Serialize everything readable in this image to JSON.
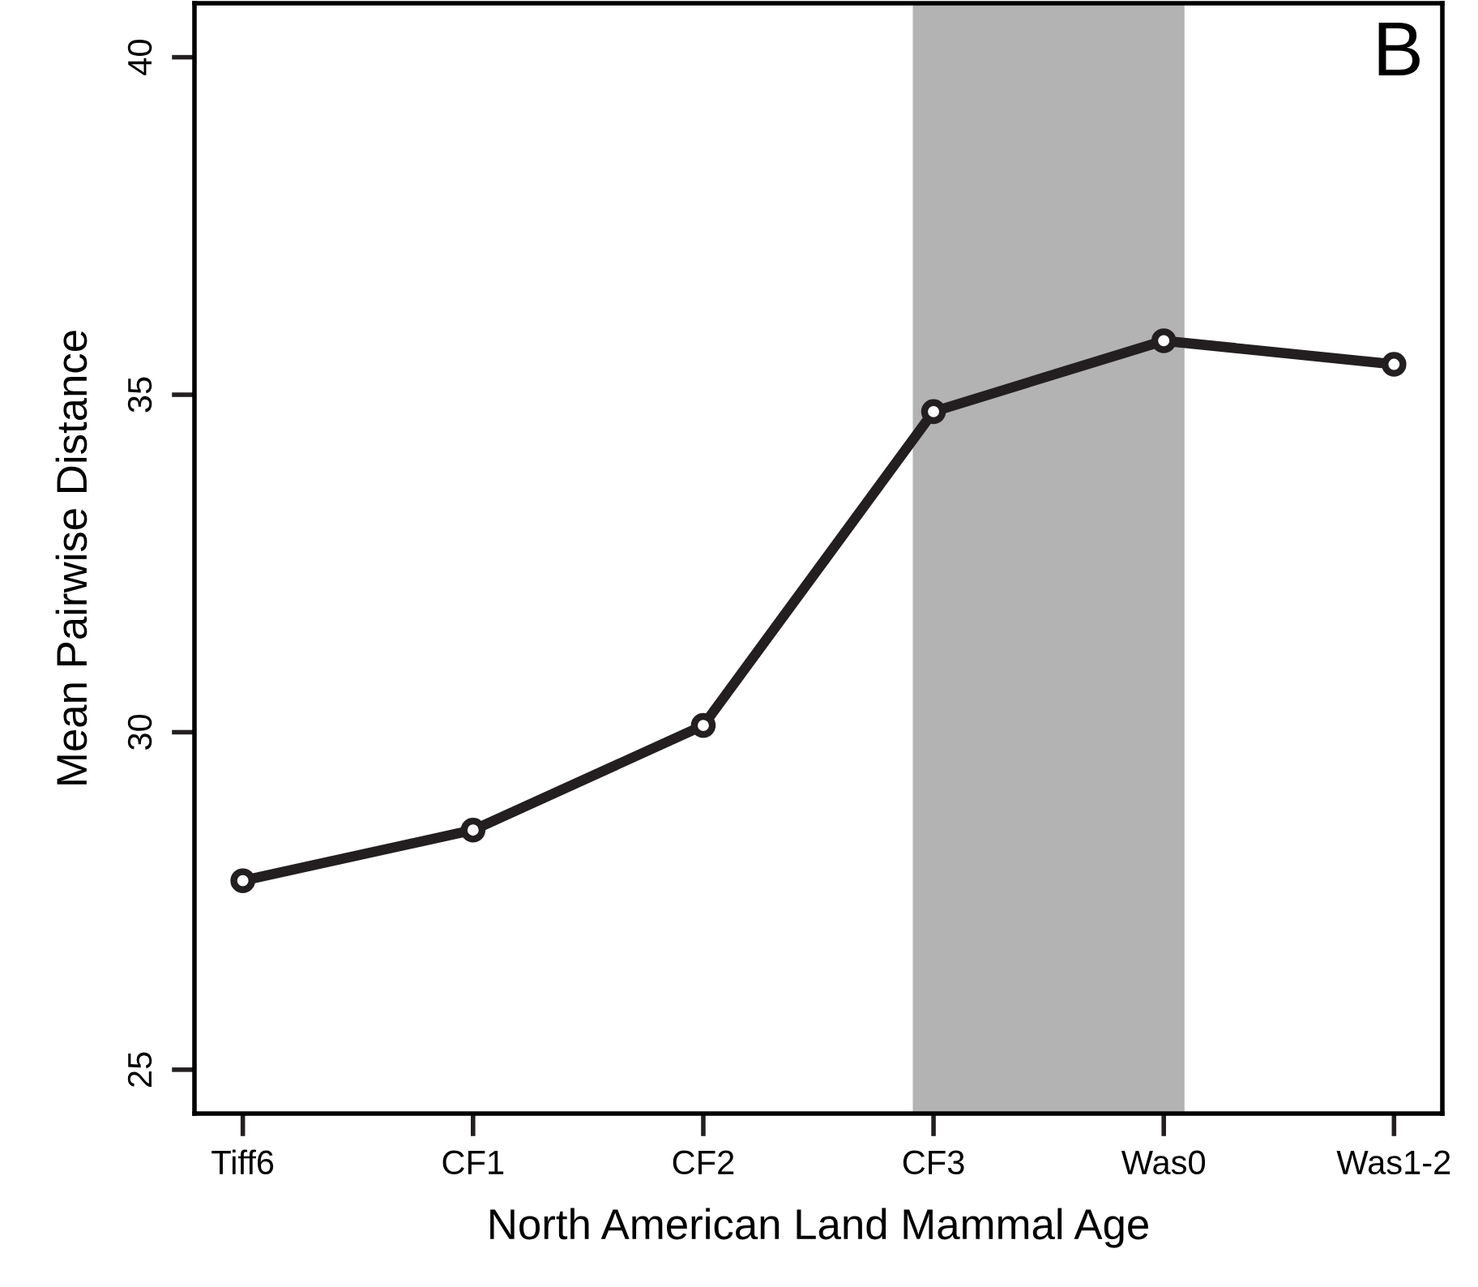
{
  "chart_data": {
    "type": "line",
    "xlabel": "North American Land Mammal Age",
    "ylabel": "Mean Pairwise Distance",
    "categories": [
      "Tiff6",
      "CF1",
      "CF2",
      "CF3",
      "Was0",
      "Was1-2"
    ],
    "series": [
      {
        "color": "#231f20",
        "values": [
          27.8,
          28.55,
          30.1,
          34.75,
          35.8,
          35.45
        ]
      }
    ],
    "ylim": [
      24.35,
      40.8
    ],
    "yticks": [
      25,
      30,
      35,
      40
    ],
    "grid": false,
    "legend": false,
    "marker": "circle",
    "line_style": "solid",
    "bands": [
      {
        "axis": "x",
        "from": "CF3",
        "to": "Was0",
        "color": "#b3b3b3"
      }
    ],
    "annotations": [
      "B"
    ]
  }
}
